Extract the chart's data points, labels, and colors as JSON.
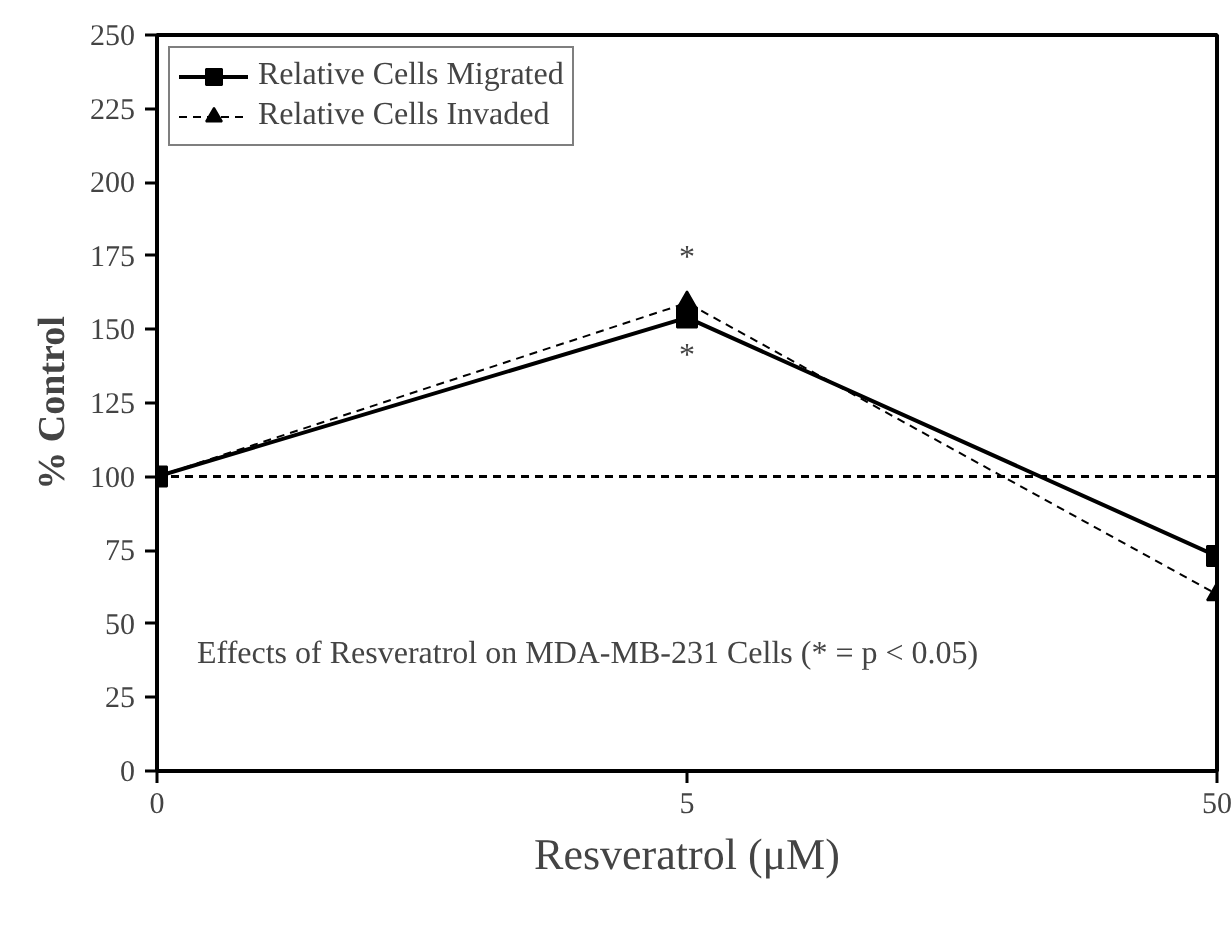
{
  "chart_data": {
    "type": "line",
    "xlabel": "Resveratrol (μM)",
    "ylabel": "% Control",
    "categories": [
      "0",
      "5",
      "50"
    ],
    "series": [
      {
        "name": "Relative Cells Migrated",
        "color": "#000000",
        "values": [
          100,
          154,
          73
        ],
        "marker": "square",
        "line_style": "solid"
      },
      {
        "name": "Relative Cells Invaded",
        "color": "#000000",
        "values": [
          100,
          159,
          60
        ],
        "marker": "triangle",
        "line_style": "dashed"
      }
    ],
    "ylim": [
      0,
      250
    ],
    "yticks": [
      0,
      25,
      50,
      75,
      100,
      125,
      150,
      175,
      200,
      225,
      250
    ],
    "ref_lines": [
      {
        "axis": "y",
        "value": 100,
        "label": null,
        "line_style": "dashed",
        "color": "#000000"
      }
    ],
    "annotations": [
      "*",
      "*",
      "Effects of Resveratrol on MDA-MB-231 Cells (* = p < 0.05)"
    ],
    "grid": false,
    "legend": "top left"
  }
}
